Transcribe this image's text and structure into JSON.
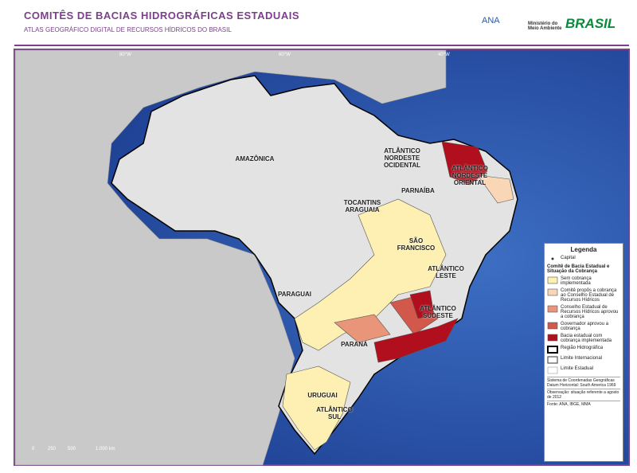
{
  "header": {
    "title": "COMITÊS DE BACIAS HIDROGRÁFICAS ESTADUAIS",
    "subtitle": "ATLAS GEOGRÁFICO DIGITAL DE RECURSOS HÍDRICOS DO BRASIL"
  },
  "logos": {
    "ana": "ANA",
    "ministry": "Ministério do Meio Ambiente",
    "brasil": "BRASIL"
  },
  "map": {
    "regions": [
      "AMAZÔNICA",
      "TOCANTINS ARAGUAIA",
      "ATLÂNTICO NORDESTE OCIDENTAL",
      "PARNAÍBA",
      "ATLÂNTICO NORDESTE ORIENTAL",
      "SÃO FRANCISCO",
      "ATLÂNTICO LESTE",
      "ATLÂNTICO SUDESTE",
      "PARANÁ",
      "PARAGUAI",
      "URUGUAI",
      "ATLÂNTICO SUL"
    ],
    "longitudes": [
      "80°W",
      "60°W",
      "40°W"
    ],
    "scale": [
      "0",
      "250",
      "500",
      "1.000 km"
    ]
  },
  "legend": {
    "title": "Legenda",
    "capital": "Capital",
    "subtitle": "Comitê de Bacia Estadual e Situação da Cobrança",
    "items": [
      {
        "label": "Sem cobrança implementada",
        "color": "#fdf0b2"
      },
      {
        "label": "Comitê propôs a cobrança ao Conselho Estadual de Recursos Hídricos",
        "color": "#f8d6b6"
      },
      {
        "label": "Conselho Estadual de Recursos Hídricos aprovou a cobrança",
        "color": "#e8957a"
      },
      {
        "label": "Governador aprovou a cobrança",
        "color": "#d2584c"
      },
      {
        "label": "Bacia estadual com cobrança implementada",
        "color": "#b10f1e"
      }
    ],
    "boundaries": [
      "Região Hidrográfica",
      "Limite Internacional",
      "Limite Estadual"
    ],
    "notes": [
      "Sistema de Coordenadas Geográficas Datum Horizontal: South America 1969",
      "Observação: situação referente a agosto de 2012",
      "Fonte: ANA, IBGE, MMA"
    ]
  }
}
